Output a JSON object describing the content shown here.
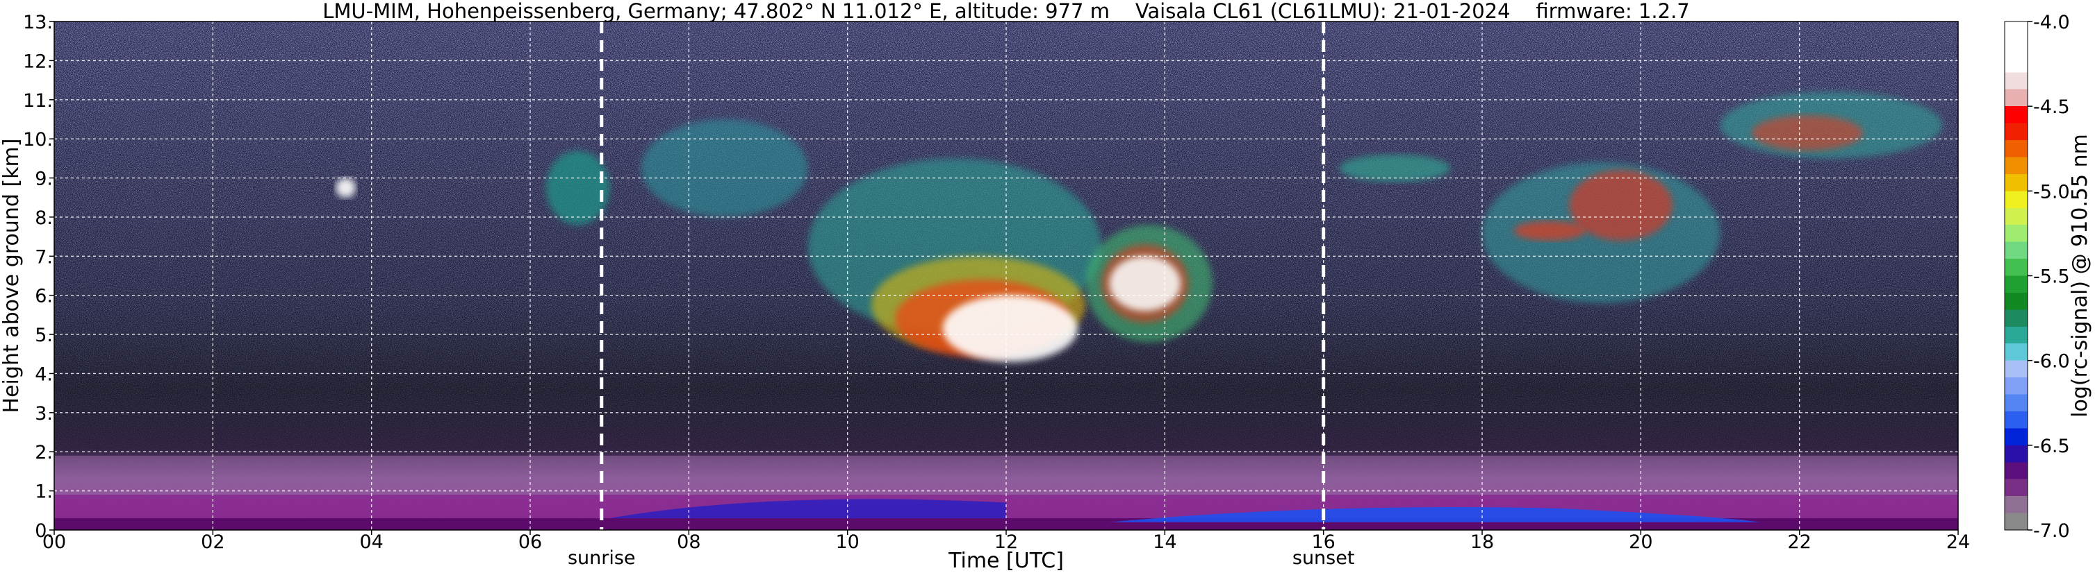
{
  "chart_data": {
    "type": "heatmap",
    "title": "LMU-MIM, Hohenpeissenberg, Germany; 47.802° N 11.012° E, altitude: 977 m    Vaisala CL61 (CL61LMU): 21-01-2024    firmware: 1.2.7",
    "xlabel": "Time [UTC]",
    "ylabel": "Height above ground [km]",
    "xlim": [
      0,
      24
    ],
    "ylim": [
      0,
      13
    ],
    "x_ticks": [
      0,
      2,
      4,
      6,
      8,
      10,
      12,
      14,
      16,
      18,
      20,
      22,
      24
    ],
    "x_tick_labels": [
      "00",
      "02",
      "04",
      "06",
      "08",
      "10",
      "12",
      "14",
      "16",
      "18",
      "20",
      "22",
      "24"
    ],
    "y_ticks": [
      0,
      1,
      2,
      3,
      4,
      5,
      6,
      7,
      8,
      9,
      10,
      11,
      12,
      13
    ],
    "y_tick_labels": [
      "0.",
      "1.",
      "2.",
      "3.",
      "4.",
      "5.",
      "6.",
      "7.",
      "8.",
      "9.",
      "10.",
      "11.",
      "12.",
      "13."
    ],
    "grid": true,
    "annotations": [
      {
        "text": "sunrise",
        "x": 6.9
      },
      {
        "text": "sunset",
        "x": 16.0
      }
    ],
    "colorbar": {
      "label": "log(rc-signal) @ 910.55 nm",
      "range": [
        -7.0,
        -4.0
      ],
      "ticks": [
        -7.0,
        -6.5,
        -6.0,
        -5.5,
        -5.0,
        -4.5,
        -4.0
      ],
      "tick_labels": [
        "-7.0",
        "-6.5",
        "-6.0",
        "-5.5",
        "-5.0",
        "-4.5",
        "-4.0"
      ],
      "colors": [
        "#8a8a8a",
        "#8f6f93",
        "#7a2f86",
        "#5a0f7c",
        "#2a0fa8",
        "#0022d8",
        "#2a5ff0",
        "#5585f2",
        "#7fa0f4",
        "#a8c0f6",
        "#5ec8d8",
        "#2aa898",
        "#1e8a60",
        "#118822",
        "#20a030",
        "#44c050",
        "#70d880",
        "#a0ec70",
        "#d0f050",
        "#f0f020",
        "#f0c000",
        "#f09000",
        "#f06000",
        "#f02000",
        "#ff0000",
        "#e8b0b0",
        "#f0dede",
        "#ffffff",
        "#ffffff",
        "#ffffff"
      ]
    }
  }
}
